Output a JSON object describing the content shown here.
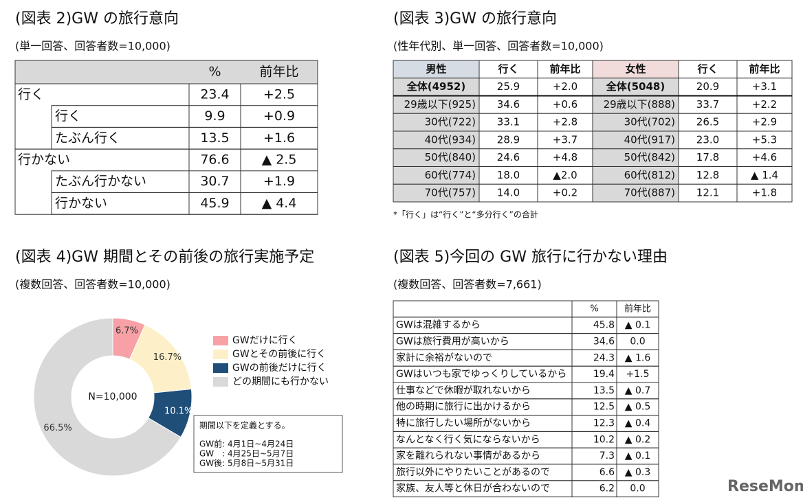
{
  "fig2": {
    "title": "(図表 2)GW の旅行意向",
    "subtitle": "(単一回答、回答者数=10,000)",
    "table": {
      "header": [
        "%",
        "前年比"
      ],
      "groups": [
        {
          "label": "行く",
          "cells": [
            "23.4",
            "+2.5"
          ],
          "items": [
            {
              "label": "行く",
              "cells": [
                "9.9",
                "+0.9"
              ]
            },
            {
              "label": "たぶん行く",
              "cells": [
                "13.5",
                "+1.6"
              ]
            }
          ]
        },
        {
          "label": "行かない",
          "cells": [
            "76.6",
            "▲ 2.5"
          ],
          "items": [
            {
              "label": "たぶん行かない",
              "cells": [
                "30.7",
                "+1.9"
              ]
            },
            {
              "label": "行かない",
              "cells": [
                "45.9",
                "▲ 4.4"
              ]
            }
          ]
        }
      ]
    }
  },
  "fig3": {
    "title": "(図表 3)GW の旅行意向",
    "subtitle": "(性年代別、単一回答、回答者数=10,000)",
    "table": {
      "header": [
        "男性",
        "行く",
        "前年比",
        "女性",
        "行く",
        "前年比"
      ],
      "rows": [
        [
          "全体(4952)",
          "25.9",
          "+2.0",
          "全体(5048)",
          "20.9",
          "+3.1"
        ],
        [
          "29歳以下(925)",
          "34.6",
          "+0.6",
          "29歳以下(888)",
          "33.7",
          "+2.2"
        ],
        [
          "30代(722)",
          "33.1",
          "+2.8",
          "30代(702)",
          "26.5",
          "+2.9"
        ],
        [
          "40代(934)",
          "28.9",
          "+3.7",
          "40代(917)",
          "23.0",
          "+5.3"
        ],
        [
          "50代(840)",
          "24.6",
          "+4.8",
          "50代(842)",
          "17.8",
          "+4.6"
        ],
        [
          "60代(774)",
          "18.0",
          "▲2.0",
          "60代(812)",
          "12.8",
          "▲ 1.4"
        ],
        [
          "70代(757)",
          "14.0",
          "+0.2",
          "70代(887)",
          "12.1",
          "+1.8"
        ]
      ]
    },
    "note": "*「行く」は“行く”と“多分行く”の合計"
  },
  "chart_data": {
    "type": "pie",
    "title": "(図表 4)GW 期間とその前後の旅行実施予定",
    "subtitle": "(複数回答、回答者数=10,000)",
    "center_label": "N=10,000",
    "series": [
      {
        "name": "GWだけに行く",
        "color": "#f7a1a6"
      },
      {
        "name": "GWとその前後に行く",
        "color": "#fdf0c8"
      },
      {
        "name": "GWの前後だけに行く",
        "color": "#1f4e79"
      },
      {
        "name": "どの期間にも行かない",
        "color": "#d9d9d9"
      }
    ],
    "values": [
      6.7,
      16.7,
      10.1,
      66.5
    ],
    "value_labels": [
      "6.7%",
      "16.7%",
      "10.1%",
      "66.5%"
    ],
    "annotations": [
      "期間以下を定義とする。",
      "GW前: 4月1日~4月24日",
      "GW　: 4月25日~5月7日",
      "GW後: 5月8日~5月31日"
    ]
  },
  "fig5": {
    "title": "(図表 5)今回の GW 旅行に行かない理由",
    "subtitle": "(複数回答、回答者数=7,661)",
    "table": {
      "header": [
        "%",
        "前年比"
      ],
      "rows": [
        [
          "GWは混雑するから",
          "45.8",
          "▲ 0.1"
        ],
        [
          "GWは旅行費用が高いから",
          "34.6",
          "0.0"
        ],
        [
          "家計に余裕がないので",
          "24.3",
          "▲ 1.6"
        ],
        [
          "GWはいつも家でゆっくりしているから",
          "19.4",
          "+1.5"
        ],
        [
          "仕事などで休暇が取れないから",
          "13.5",
          "▲ 0.7"
        ],
        [
          "他の時期に旅行に出かけるから",
          "12.5",
          "▲ 0.5"
        ],
        [
          "特に旅行したい場所がないから",
          "12.3",
          "▲ 0.4"
        ],
        [
          "なんとなく行く気にならないから",
          "10.2",
          "▲ 0.2"
        ],
        [
          "家を離れられない事情があるから",
          "7.3",
          "▲ 0.1"
        ],
        [
          "旅行以外にやりたいことがあるので",
          "6.6",
          "▲ 0.3"
        ],
        [
          "家族、友人等と休日が合わないので",
          "6.2",
          "0.0"
        ]
      ]
    }
  },
  "logo": "ReseMom"
}
